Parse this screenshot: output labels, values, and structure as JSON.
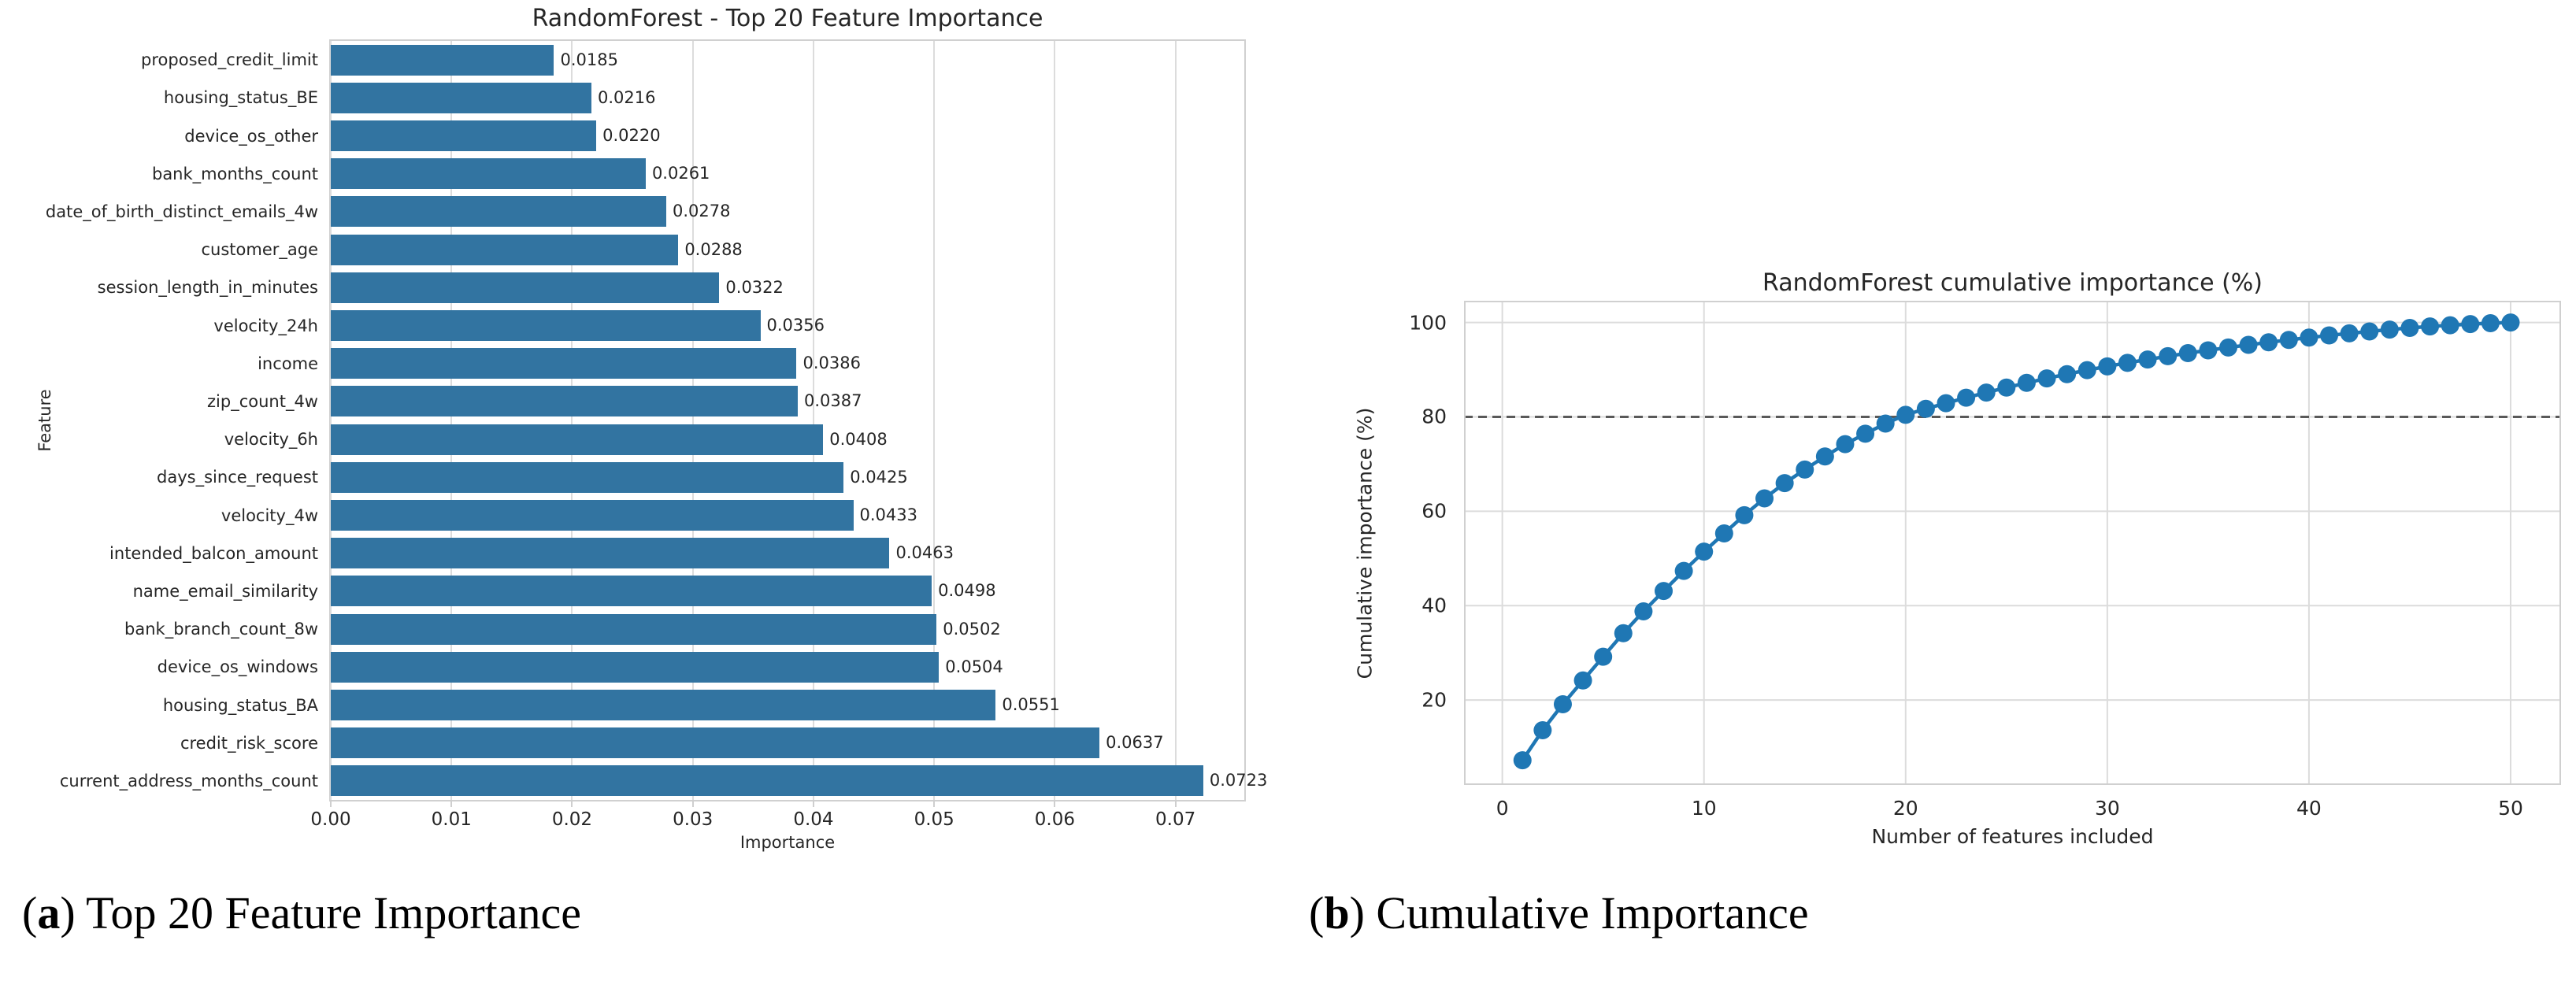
{
  "colors": {
    "bar": "#3274a1",
    "line": "#1f77b4",
    "grid": "#dcdcdc",
    "frame": "#d0d0d0",
    "threshold": "#595959",
    "text": "#262626"
  },
  "chart_data": [
    {
      "type": "bar",
      "orientation": "horizontal",
      "title": "RandomForest - Top 20 Feature Importance",
      "xlabel": "Importance",
      "ylabel": "Feature",
      "grid": true,
      "xlim": [
        0,
        0.0757
      ],
      "x_ticks": [
        "0.00",
        "0.01",
        "0.02",
        "0.03",
        "0.04",
        "0.05",
        "0.06",
        "0.07"
      ],
      "categories": [
        "proposed_credit_limit",
        "housing_status_BE",
        "device_os_other",
        "bank_months_count",
        "date_of_birth_distinct_emails_4w",
        "customer_age",
        "session_length_in_minutes",
        "velocity_24h",
        "income",
        "zip_count_4w",
        "velocity_6h",
        "days_since_request",
        "velocity_4w",
        "intended_balcon_amount",
        "name_email_similarity",
        "bank_branch_count_8w",
        "device_os_windows",
        "housing_status_BA",
        "credit_risk_score",
        "current_address_months_count"
      ],
      "values": [
        0.0185,
        0.0216,
        0.022,
        0.0261,
        0.0278,
        0.0288,
        0.0322,
        0.0356,
        0.0386,
        0.0387,
        0.0408,
        0.0425,
        0.0433,
        0.0463,
        0.0498,
        0.0502,
        0.0504,
        0.0551,
        0.0637,
        0.0723
      ],
      "value_labels": [
        "0.0185",
        "0.0216",
        "0.0220",
        "0.0261",
        "0.0278",
        "0.0288",
        "0.0322",
        "0.0356",
        "0.0386",
        "0.0387",
        "0.0408",
        "0.0425",
        "0.0433",
        "0.0463",
        "0.0498",
        "0.0502",
        "0.0504",
        "0.0551",
        "0.0637",
        "0.0723"
      ]
    },
    {
      "type": "line",
      "title": "RandomForest cumulative importance (%)",
      "xlabel": "Number of features included",
      "ylabel": "Cumulative importance (%)",
      "grid": true,
      "marker": "o",
      "threshold_y": 80,
      "xlim": [
        -1.9,
        52.5
      ],
      "ylim": [
        2,
        104.6
      ],
      "x_ticks": [
        0,
        10,
        20,
        30,
        40,
        50
      ],
      "y_ticks": [
        20,
        40,
        60,
        80,
        100
      ],
      "x": [
        1,
        2,
        3,
        4,
        5,
        6,
        7,
        8,
        9,
        10,
        11,
        12,
        13,
        14,
        15,
        16,
        17,
        18,
        19,
        20,
        21,
        22,
        23,
        24,
        25,
        26,
        27,
        28,
        29,
        30,
        31,
        32,
        33,
        34,
        35,
        36,
        37,
        38,
        39,
        40,
        41,
        42,
        43,
        44,
        45,
        46,
        47,
        48,
        49,
        50
      ],
      "y": [
        7.23,
        13.6,
        19.11,
        24.15,
        29.17,
        34.15,
        38.78,
        43.11,
        47.36,
        51.44,
        55.31,
        59.17,
        62.73,
        65.95,
        68.83,
        71.61,
        74.22,
        76.42,
        78.58,
        80.43,
        81.7,
        82.9,
        84.05,
        85.15,
        86.2,
        87.2,
        88.15,
        89.05,
        89.9,
        90.7,
        91.45,
        92.15,
        92.85,
        93.5,
        94.1,
        94.7,
        95.25,
        95.8,
        96.3,
        96.8,
        97.25,
        97.7,
        98.1,
        98.5,
        98.85,
        99.15,
        99.4,
        99.65,
        99.85,
        100.0
      ]
    }
  ],
  "captions": {
    "a": {
      "open": "(",
      "marker": "a",
      "close": ")",
      "text": " Top 20 Feature Importance"
    },
    "b": {
      "open": "(",
      "marker": "b",
      "close": ")",
      "text": " Cumulative Importance"
    }
  }
}
